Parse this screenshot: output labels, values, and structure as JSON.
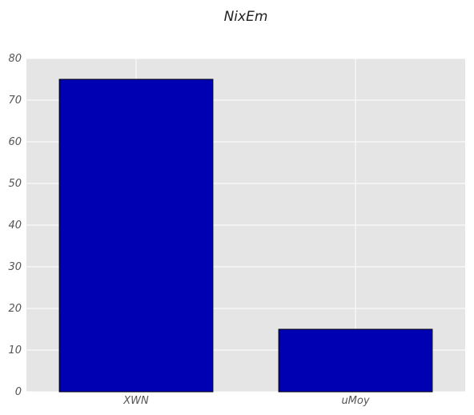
{
  "chart_data": {
    "type": "bar",
    "title": "NixEm",
    "xlabel": "",
    "ylabel": "",
    "categories": [
      "XWN",
      "uMoy"
    ],
    "values": [
      75,
      15
    ],
    "ylim": [
      0,
      80
    ],
    "yticks": [
      0,
      10,
      20,
      30,
      40,
      50,
      60,
      70,
      80
    ],
    "grid": true,
    "legend": "none",
    "colors": {
      "bar_fill": "#0000b3",
      "bar_edge": "#000000",
      "plot_background": "#e5e5e5",
      "grid": "#ffffff"
    }
  }
}
